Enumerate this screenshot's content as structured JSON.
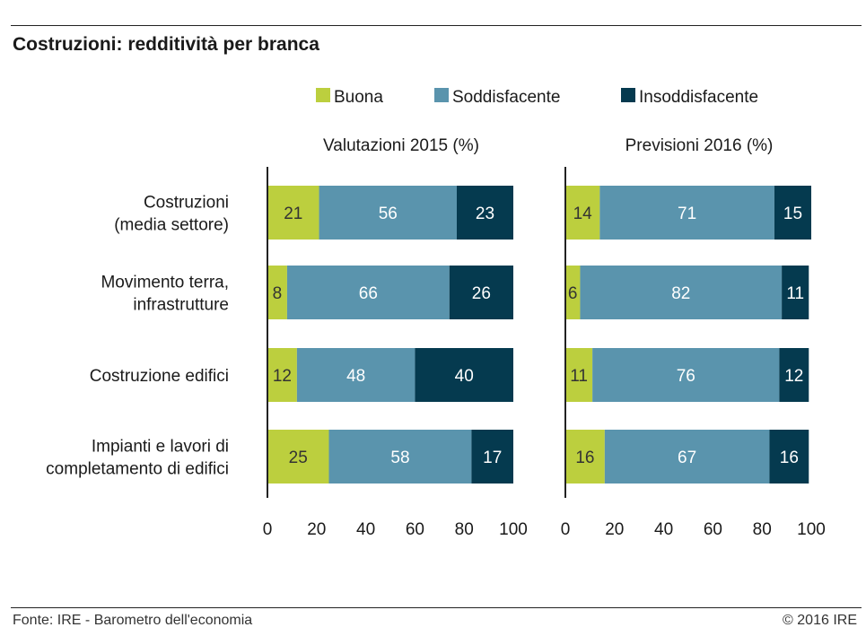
{
  "title": "Costruzioni: redditività per branca",
  "footer": {
    "source": "Fonte: IRE - Barometro dell'economia",
    "copyright": "© 2016 IRE"
  },
  "colors": {
    "buona": "#bccf3e",
    "soddisfacente": "#5a94ad",
    "insoddisfacente": "#053a4f"
  },
  "chart_data": [
    {
      "type": "bar",
      "orientation": "horizontal-stacked",
      "title": "Valutazioni 2015 (%)",
      "categories": [
        "Costruzioni (media settore)",
        "Movimento terra, infrastrutture",
        "Costruzione edifici",
        "Impianti e lavori di completamento di edifici"
      ],
      "series": [
        {
          "name": "Buona",
          "values": [
            21,
            8,
            12,
            25
          ]
        },
        {
          "name": "Soddisfacente",
          "values": [
            56,
            66,
            48,
            58
          ]
        },
        {
          "name": "Insoddisfacente",
          "values": [
            23,
            26,
            40,
            17
          ]
        }
      ],
      "xlim": [
        0,
        100
      ],
      "xticks": [
        0,
        20,
        40,
        60,
        80,
        100
      ],
      "legend": "top"
    },
    {
      "type": "bar",
      "orientation": "horizontal-stacked",
      "title": "Previsioni 2016 (%)",
      "categories": [
        "Costruzioni (media settore)",
        "Movimento terra, infrastrutture",
        "Costruzione edifici",
        "Impianti e lavori di completamento di edifici"
      ],
      "series": [
        {
          "name": "Buona",
          "values": [
            14,
            6,
            11,
            16
          ]
        },
        {
          "name": "Soddisfacente",
          "values": [
            71,
            82,
            76,
            67
          ]
        },
        {
          "name": "Insoddisfacente",
          "values": [
            15,
            11,
            12,
            16
          ]
        }
      ],
      "xlim": [
        0,
        100
      ],
      "xticks": [
        0,
        20,
        40,
        60,
        80,
        100
      ],
      "legend": "top"
    }
  ],
  "category_lines": [
    [
      "Costruzioni",
      "(media settore)"
    ],
    [
      "Movimento terra,",
      "infrastrutture"
    ],
    [
      "Costruzione edifici"
    ],
    [
      "Impianti e lavori di",
      "completamento di edifici"
    ]
  ]
}
